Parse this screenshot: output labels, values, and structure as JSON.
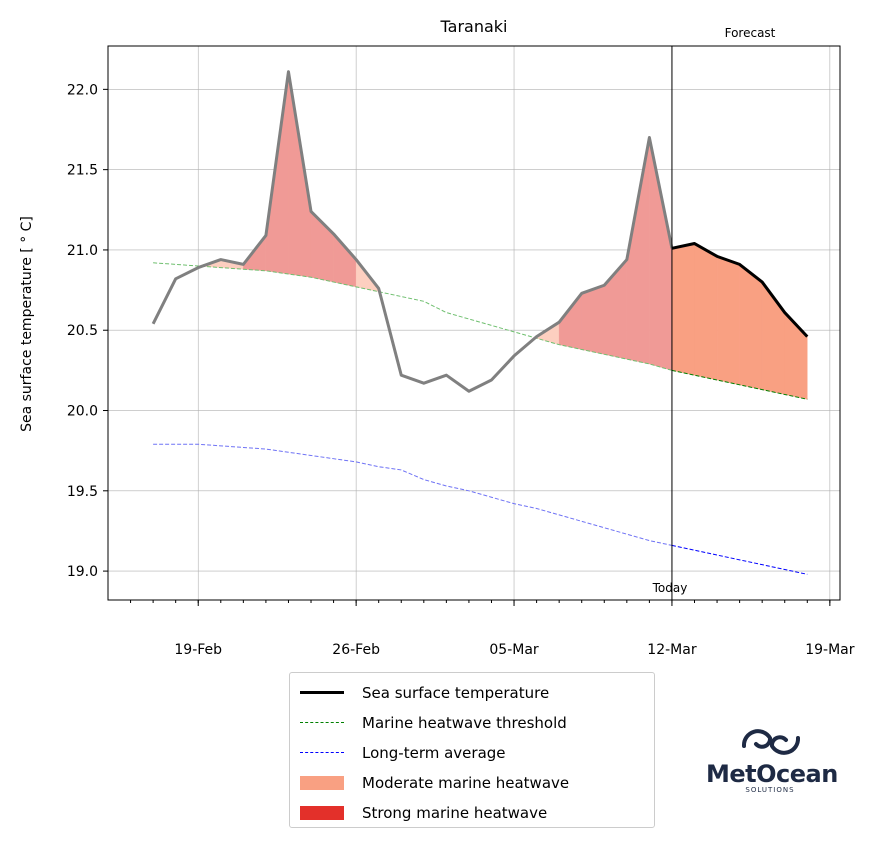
{
  "chart_data": {
    "type": "line",
    "title": "Taranaki",
    "ylabel": "Sea surface temperature [$^\\circ$C]",
    "ylabel_display": "Sea surface temperature [ ° C]",
    "xlabel": "",
    "x_tick_labels": [
      "19-Feb",
      "26-Feb",
      "05-Mar",
      "12-Mar",
      "19-Mar"
    ],
    "x_tick_dates": [
      "2019-02-19",
      "2019-02-26",
      "2019-03-05",
      "2019-03-12",
      "2019-03-19"
    ],
    "y_tick_labels": [
      "19.0",
      "19.5",
      "20.0",
      "20.5",
      "21.0",
      "21.5",
      "22.0"
    ],
    "ylim": [
      18.82,
      22.27
    ],
    "xlim": [
      "2019-02-15",
      "2019-03-19"
    ],
    "grid": true,
    "annotations": {
      "forecast": "Forecast",
      "today": "Today",
      "today_date": "2019-03-12"
    },
    "series": [
      {
        "name": "Sea surface temperature",
        "color": "#808080",
        "forecast_color": "#000000",
        "x": [
          "2019-02-17",
          "2019-02-18",
          "2019-02-19",
          "2019-02-20",
          "2019-02-21",
          "2019-02-22",
          "2019-02-23",
          "2019-02-24",
          "2019-02-25",
          "2019-02-26",
          "2019-02-27",
          "2019-02-28",
          "2019-03-01",
          "2019-03-02",
          "2019-03-03",
          "2019-03-04",
          "2019-03-05",
          "2019-03-06",
          "2019-03-07",
          "2019-03-08",
          "2019-03-09",
          "2019-03-10",
          "2019-03-11",
          "2019-03-12",
          "2019-03-13",
          "2019-03-14",
          "2019-03-15",
          "2019-03-16",
          "2019-03-17",
          "2019-03-18"
        ],
        "y": [
          20.54,
          20.82,
          20.89,
          20.94,
          20.91,
          21.09,
          22.11,
          21.24,
          21.1,
          20.94,
          20.76,
          20.22,
          20.17,
          20.22,
          20.12,
          20.19,
          20.34,
          20.46,
          20.55,
          20.73,
          20.78,
          20.94,
          21.7,
          21.01,
          21.04,
          20.96,
          20.91,
          20.8,
          20.61,
          20.46
        ]
      },
      {
        "name": "Marine heatwave threshold",
        "color": "#008000",
        "x": [
          "2019-02-17",
          "2019-02-18",
          "2019-02-19",
          "2019-02-20",
          "2019-02-21",
          "2019-02-22",
          "2019-02-23",
          "2019-02-24",
          "2019-02-25",
          "2019-02-26",
          "2019-02-27",
          "2019-02-28",
          "2019-03-01",
          "2019-03-02",
          "2019-03-03",
          "2019-03-04",
          "2019-03-05",
          "2019-03-06",
          "2019-03-07",
          "2019-03-08",
          "2019-03-09",
          "2019-03-10",
          "2019-03-11",
          "2019-03-12",
          "2019-03-13",
          "2019-03-14",
          "2019-03-15",
          "2019-03-16",
          "2019-03-17",
          "2019-03-18"
        ],
        "y": [
          20.92,
          20.91,
          20.9,
          20.89,
          20.88,
          20.87,
          20.85,
          20.83,
          20.8,
          20.77,
          20.74,
          20.71,
          20.68,
          20.61,
          20.57,
          20.53,
          20.49,
          20.45,
          20.41,
          20.38,
          20.35,
          20.32,
          20.29,
          20.25,
          20.22,
          20.19,
          20.16,
          20.13,
          20.1,
          20.07
        ]
      },
      {
        "name": "Long-term average",
        "color": "#0000ff",
        "x": [
          "2019-02-17",
          "2019-02-18",
          "2019-02-19",
          "2019-02-20",
          "2019-02-21",
          "2019-02-22",
          "2019-02-23",
          "2019-02-24",
          "2019-02-25",
          "2019-02-26",
          "2019-02-27",
          "2019-02-28",
          "2019-03-01",
          "2019-03-02",
          "2019-03-03",
          "2019-03-04",
          "2019-03-05",
          "2019-03-06",
          "2019-03-07",
          "2019-03-08",
          "2019-03-09",
          "2019-03-10",
          "2019-03-11",
          "2019-03-12",
          "2019-03-13",
          "2019-03-14",
          "2019-03-15",
          "2019-03-16",
          "2019-03-17",
          "2019-03-18"
        ],
        "y": [
          19.79,
          19.79,
          19.79,
          19.78,
          19.77,
          19.76,
          19.74,
          19.72,
          19.7,
          19.68,
          19.65,
          19.63,
          19.57,
          19.53,
          19.5,
          19.46,
          19.42,
          19.39,
          19.35,
          19.31,
          19.27,
          19.23,
          19.19,
          19.16,
          19.13,
          19.1,
          19.07,
          19.04,
          19.01,
          18.98
        ]
      }
    ],
    "legend": [
      {
        "label": "Sea surface temperature",
        "kind": "line",
        "color": "#000000",
        "dash": false
      },
      {
        "label": "Marine heatwave threshold",
        "kind": "line",
        "color": "#008000",
        "dash": true
      },
      {
        "label": "Long-term average",
        "kind": "line",
        "color": "#0000ff",
        "dash": true
      },
      {
        "label": "Moderate marine heatwave",
        "kind": "patch",
        "color": "#f9a082"
      },
      {
        "label": "Strong marine heatwave",
        "kind": "patch",
        "color": "#e3302a"
      }
    ],
    "legend_position": "below",
    "fills": {
      "past_moderate_color": "#fdcfc0",
      "past_strong_color": "#f09a96",
      "forecast_moderate_color": "#f9a082"
    }
  },
  "logo": {
    "name": "MetOcean",
    "sub": "SOLUTIONS",
    "color": "#1e2a44"
  }
}
